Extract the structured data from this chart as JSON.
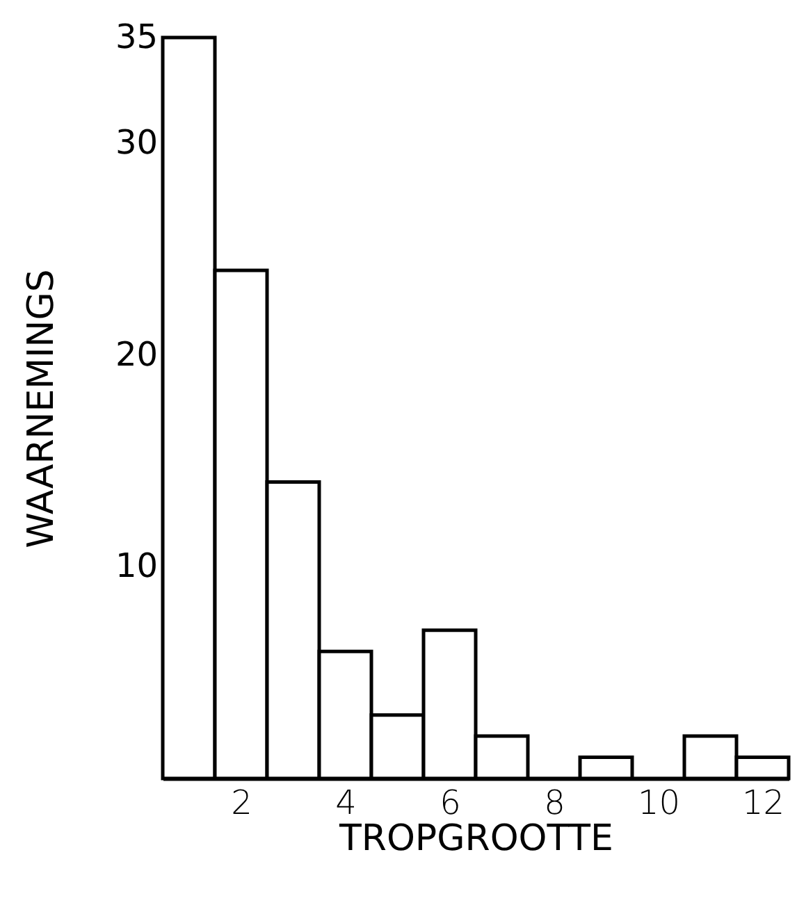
{
  "chart_data": {
    "type": "histogram",
    "xlabel": "TROPGROOTTE",
    "ylabel": "WAARNEMINGS",
    "bins": [
      0.5,
      1.5,
      2.5,
      3.5,
      4.5,
      5.5,
      6.5,
      7.5,
      8.5,
      9.5,
      10.5,
      11.5,
      12.5
    ],
    "values": [
      35,
      24,
      14,
      6,
      3,
      7,
      2,
      0,
      1,
      0,
      2,
      1
    ],
    "color": "#000000",
    "xlim": [
      0.5,
      12.5
    ],
    "xticks": [
      2,
      4,
      6,
      8,
      10,
      12
    ],
    "ylim": [
      0,
      35
    ],
    "yticks": [
      10,
      20,
      30,
      35
    ],
    "grid": false
  }
}
